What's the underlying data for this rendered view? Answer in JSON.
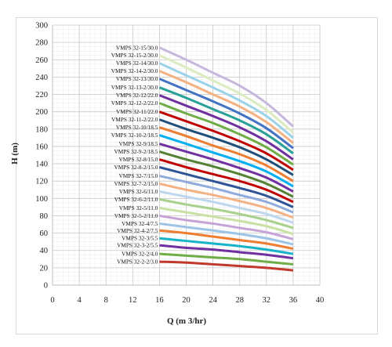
{
  "chart_data": {
    "type": "line",
    "xlabel": "Q (m 3/hr)",
    "ylabel": "H (m)",
    "xlim": [
      0,
      40
    ],
    "ylim": [
      0,
      300
    ],
    "x_ticks": [
      0,
      4,
      8,
      12,
      16,
      20,
      24,
      28,
      32,
      36,
      40
    ],
    "y_ticks": [
      0,
      20,
      40,
      60,
      80,
      100,
      120,
      140,
      160,
      180,
      200,
      220,
      240,
      260,
      280,
      300
    ],
    "grid": true,
    "x": [
      16,
      20,
      24,
      28,
      32,
      36
    ],
    "series": [
      {
        "name": "VMPS 32-15/30.0",
        "color": "#c6b8dc",
        "values": [
          274,
          260,
          245,
          230,
          210,
          183
        ]
      },
      {
        "name": "VMPS 32-15-2/30.0",
        "color": "#dcebc0",
        "values": [
          265,
          251,
          236,
          221,
          202,
          176
        ]
      },
      {
        "name": "VMPS 32-14/30.0",
        "color": "#9ad2ea",
        "values": [
          256,
          242,
          228,
          213,
          195,
          170
        ]
      },
      {
        "name": "VMPS 32-14-2/30.0",
        "color": "#f4b183",
        "values": [
          247,
          234,
          220,
          206,
          188,
          164
        ]
      },
      {
        "name": "VMPS 32-13/30.0",
        "color": "#4472c4",
        "values": [
          238,
          225,
          212,
          198,
          181,
          158
        ]
      },
      {
        "name": "VMPS 32-13-2/30.0",
        "color": "#2aa198",
        "values": [
          228,
          216,
          203,
          190,
          174,
          152
        ]
      },
      {
        "name": "VMPS 32-12/22.0",
        "color": "#7030a0",
        "values": [
          219,
          207,
          195,
          182,
          166,
          145
        ]
      },
      {
        "name": "VMPS 32-12-2/22.0",
        "color": "#70ad47",
        "values": [
          210,
          198,
          187,
          174,
          159,
          139
        ]
      },
      {
        "name": "VMPS 32-11/22.0",
        "color": "#c00000",
        "values": [
          200,
          189,
          178,
          166,
          152,
          133
        ]
      },
      {
        "name": "VMPS 32-11-2/22.0",
        "color": "#1f4e79",
        "values": [
          191,
          180,
          170,
          159,
          145,
          127
        ]
      },
      {
        "name": "VMPS 32-10/18.5",
        "color": "#ed7d31",
        "values": [
          182,
          172,
          161,
          151,
          138,
          120
        ]
      },
      {
        "name": "VMPS 32-10-2/18.5",
        "color": "#00b0f0",
        "values": [
          173,
          163,
          153,
          143,
          131,
          114
        ]
      },
      {
        "name": "VMPS 32-9/18.5",
        "color": "#7030a0",
        "values": [
          163,
          154,
          145,
          135,
          124,
          108
        ]
      },
      {
        "name": "VMPS 32-9-2/18.5",
        "color": "#548235",
        "values": [
          154,
          145,
          137,
          128,
          117,
          102
        ]
      },
      {
        "name": "VMPS 32-8/15.0",
        "color": "#c00000",
        "values": [
          145,
          136,
          128,
          120,
          110,
          96
        ]
      },
      {
        "name": "VMPS 32-8-2/15.0",
        "color": "#2f5597",
        "values": [
          136,
          128,
          120,
          112,
          103,
          90
        ]
      },
      {
        "name": "VMPS 32-7/15.0",
        "color": "#8faadc",
        "values": [
          126,
          119,
          112,
          104,
          96,
          84
        ]
      },
      {
        "name": "VMPS 32-7-2/15.0",
        "color": "#f4b183",
        "values": [
          117,
          110,
          104,
          97,
          89,
          78
        ]
      },
      {
        "name": "VMPS 32-6/11.0",
        "color": "#bdd7ee",
        "values": [
          108,
          102,
          96,
          89,
          82,
          72
        ]
      },
      {
        "name": "VMPS 32-6-2/11.0",
        "color": "#a9d18e",
        "values": [
          99,
          93,
          88,
          82,
          75,
          66
        ]
      },
      {
        "name": "VMPS 32-5/11.0",
        "color": "#c9e1a4",
        "values": [
          89,
          84,
          79,
          74,
          68,
          59
        ]
      },
      {
        "name": "VMPS 32-5-2/11.0",
        "color": "#c5a3d6",
        "values": [
          80,
          75,
          71,
          66,
          61,
          53
        ]
      },
      {
        "name": "VMPS 32-4/7.5",
        "color": "#9dc3e6",
        "values": [
          71,
          67,
          63,
          59,
          54,
          47
        ]
      },
      {
        "name": "VMPS 32-4-2/7.5",
        "color": "#ed7d31",
        "values": [
          63,
          60,
          56,
          52,
          48,
          42
        ]
      },
      {
        "name": "VMPS 32-3/5.5",
        "color": "#17b3c9",
        "values": [
          54,
          51,
          48,
          45,
          41,
          36
        ]
      },
      {
        "name": "VMPS 32-3-2/5.5",
        "color": "#7030a0",
        "values": [
          46,
          43,
          41,
          38,
          35,
          31
        ]
      },
      {
        "name": "VMPS 32-2/4.0",
        "color": "#70ad47",
        "values": [
          36,
          34,
          32,
          30,
          27,
          24
        ]
      },
      {
        "name": "VMPS 32-2-2/3.0",
        "color": "#c0392b",
        "values": [
          27,
          26,
          24,
          22,
          20,
          17
        ]
      }
    ]
  }
}
